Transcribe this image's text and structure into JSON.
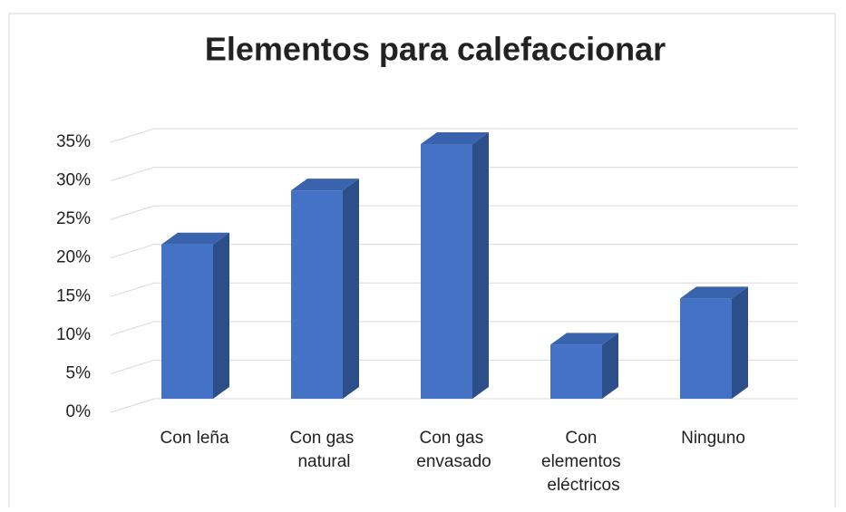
{
  "chart_data": {
    "type": "bar3d",
    "title": "Elementos para calefaccionar",
    "categories": [
      "Con leña",
      "Con gas natural",
      "Con gas envasado",
      "Con elementos eléctricos",
      "Ninguno"
    ],
    "values": [
      20,
      27,
      33,
      7,
      13
    ],
    "color": "#4472c4",
    "side_color": "#2c4f8a",
    "top_color": "#3a63ad",
    "ylim": [
      0,
      35
    ],
    "yticks": [
      {
        "value": 0,
        "label": "0%"
      },
      {
        "value": 5,
        "label": "5%"
      },
      {
        "value": 10,
        "label": "10%"
      },
      {
        "value": 15,
        "label": "15%"
      },
      {
        "value": 20,
        "label": "20%"
      },
      {
        "value": 25,
        "label": "25%"
      },
      {
        "value": 30,
        "label": "30%"
      },
      {
        "value": 35,
        "label": "35%"
      }
    ],
    "grid": true
  }
}
